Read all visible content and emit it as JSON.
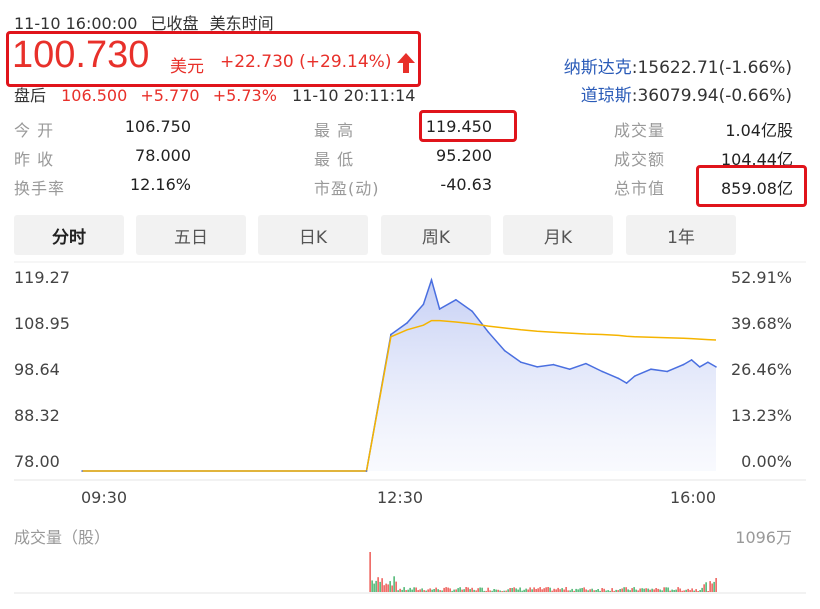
{
  "header": {
    "datetime": "11-10 16:00:00",
    "status": "已收盘",
    "timezone": "美东时间",
    "price": "100.730",
    "currency": "美元",
    "change": "+22.730",
    "change_pct": "(+29.14%)",
    "after_hours_label": "盘后",
    "after_hours_price": "106.500",
    "after_hours_change": "+5.770",
    "after_hours_pct": "+5.73%",
    "after_hours_time": "11-10 20:11:14"
  },
  "indices": [
    {
      "name": "纳斯达克",
      "value": ":15622.71(-1.66%)"
    },
    {
      "name": "道琼斯",
      "value": ":36079.94(-0.66%)"
    }
  ],
  "stats": [
    {
      "label": "今 开",
      "value": "106.750"
    },
    {
      "label": "昨 收",
      "value": "78.000"
    },
    {
      "label": "换手率",
      "value": "12.16%"
    },
    {
      "label": "最 高",
      "value": "119.450"
    },
    {
      "label": "最 低",
      "value": "95.200"
    },
    {
      "label": "市盈(动)",
      "value": "-40.63"
    },
    {
      "label": "成交量",
      "value": "1.04亿股"
    },
    {
      "label": "成交额",
      "value": "104.44亿"
    },
    {
      "label": "总市值",
      "value": "859.08亿"
    }
  ],
  "tabs": [
    "分时",
    "五日",
    "日K",
    "周K",
    "月K",
    "1年"
  ],
  "active_tab": "分时",
  "chart_axes": {
    "y_left": [
      "119.27",
      "108.95",
      "98.64",
      "88.32",
      "78.00"
    ],
    "y_right": [
      "52.91%",
      "39.68%",
      "26.46%",
      "13.23%",
      "0.00%"
    ],
    "x": [
      "09:30",
      "12:30",
      "16:00"
    ]
  },
  "volume": {
    "label": "成交量（股）",
    "max": "1096万"
  },
  "colors": {
    "up": "#e8302a",
    "down": "#1aa14a",
    "price_line": "#4a6fe0",
    "avg_line": "#f5b400",
    "highlight_box": "#e0141b",
    "index_name": "#2a5bb8"
  },
  "chart_data": {
    "type": "line",
    "ylim": [
      78.0,
      119.27
    ],
    "series": [
      {
        "values": [
          78.0,
          78.0,
          107.5,
          110.0,
          114.0,
          119.27,
          113.0,
          115.0,
          112.5,
          108.0,
          104.0,
          101.5,
          100.5,
          101.0,
          100.0,
          101.2,
          99.5,
          98.0,
          97.0,
          98.5,
          100.0,
          99.5,
          101.0,
          102.0,
          100.5,
          101.5,
          100.5
        ]
      },
      {
        "values": [
          78.0,
          78.0,
          107.0,
          108.5,
          109.5,
          110.5,
          110.5,
          110.2,
          109.8,
          109.3,
          108.9,
          108.5,
          108.2,
          108.0,
          107.8,
          107.6,
          107.5,
          107.3,
          107.1,
          107.0,
          106.9,
          106.8,
          106.7,
          106.6,
          106.5,
          106.4,
          106.3
        ]
      }
    ],
    "x": [
      "09:30",
      "12:25",
      "12:40",
      "12:50",
      "13:00",
      "13:05",
      "13:10",
      "13:20",
      "13:30",
      "13:40",
      "13:50",
      "14:00",
      "14:10",
      "14:20",
      "14:30",
      "14:40",
      "14:50",
      "15:00",
      "15:05",
      "15:10",
      "15:20",
      "15:30",
      "15:40",
      "15:45",
      "15:50",
      "15:55",
      "16:00"
    ]
  }
}
